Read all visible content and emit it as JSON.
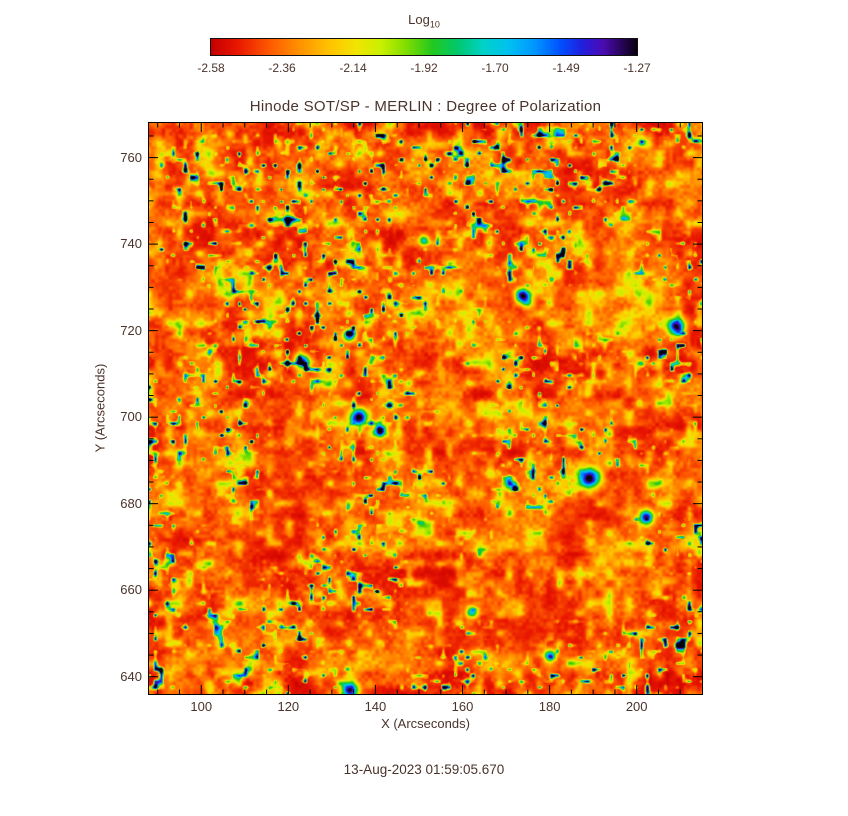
{
  "chart_data": {
    "type": "heatmap",
    "title": "Hinode SOT/SP - MERLIN : Degree of Polarization",
    "xlabel": "X (Arcseconds)",
    "ylabel": "Y (Arcseconds)",
    "timestamp": "13-Aug-2023 01:59:05.670",
    "xlim": [
      88,
      215
    ],
    "ylim": [
      636,
      768
    ],
    "x_ticks": [
      100,
      120,
      140,
      160,
      180,
      200
    ],
    "y_ticks": [
      640,
      660,
      680,
      700,
      720,
      740,
      760
    ],
    "minor_tick_step": 5,
    "grid": false,
    "legend": "none",
    "colorbar": {
      "label": "Log",
      "label_subscript": "10",
      "tick_labels": [
        "-2.58",
        "-2.36",
        "-2.14",
        "-1.92",
        "-1.70",
        "-1.49",
        "-1.27"
      ],
      "value_range": [
        -2.58,
        -1.27
      ],
      "orientation": "horizontal",
      "colormap_stops": [
        {
          "pos": 0.0,
          "color": "#c30000"
        },
        {
          "pos": 0.06,
          "color": "#e81500"
        },
        {
          "pos": 0.14,
          "color": "#ff5a00"
        },
        {
          "pos": 0.2,
          "color": "#ff8c00"
        },
        {
          "pos": 0.28,
          "color": "#ffc400"
        },
        {
          "pos": 0.34,
          "color": "#f2e400"
        },
        {
          "pos": 0.4,
          "color": "#c8f000"
        },
        {
          "pos": 0.46,
          "color": "#7ddc00"
        },
        {
          "pos": 0.52,
          "color": "#22c81e"
        },
        {
          "pos": 0.58,
          "color": "#00c86e"
        },
        {
          "pos": 0.64,
          "color": "#00d2c8"
        },
        {
          "pos": 0.7,
          "color": "#00c0f0"
        },
        {
          "pos": 0.76,
          "color": "#0096ff"
        },
        {
          "pos": 0.82,
          "color": "#0050ff"
        },
        {
          "pos": 0.87,
          "color": "#2020dd"
        },
        {
          "pos": 0.92,
          "color": "#4b0bb4"
        },
        {
          "pos": 0.96,
          "color": "#2a0560"
        },
        {
          "pos": 1.0,
          "color": "#0a0010"
        }
      ]
    },
    "field": {
      "description": "Mottled solar quiet-sun degree-of-polarization map: mostly log10 DoP between -2.6 and -2.1 (red/orange/yellow) with sparse high-polarization green/cyan/blue patches.",
      "texture": {
        "seed": 20230813,
        "base": 0.03,
        "amplitude": 0.4,
        "gamma": 1.8,
        "speckle": 0.22,
        "spike": 1.9,
        "row_variation": 0.05
      },
      "hotspots": [
        {
          "x": 123,
          "y": 713,
          "i": 0.85,
          "r": 5
        },
        {
          "x": 134,
          "y": 719,
          "i": 0.75,
          "r": 4
        },
        {
          "x": 136,
          "y": 700,
          "i": 0.9,
          "r": 6
        },
        {
          "x": 141,
          "y": 697,
          "i": 0.8,
          "r": 4
        },
        {
          "x": 174,
          "y": 728,
          "i": 0.8,
          "r": 5
        },
        {
          "x": 189,
          "y": 686,
          "i": 0.95,
          "r": 7
        },
        {
          "x": 202,
          "y": 677,
          "i": 0.85,
          "r": 5
        },
        {
          "x": 209,
          "y": 721,
          "i": 0.8,
          "r": 6
        },
        {
          "x": 134,
          "y": 637,
          "i": 0.9,
          "r": 6
        },
        {
          "x": 180,
          "y": 645,
          "i": 0.7,
          "r": 4
        },
        {
          "x": 162,
          "y": 655,
          "i": 0.6,
          "r": 4
        },
        {
          "x": 151,
          "y": 741,
          "i": 0.55,
          "r": 4
        }
      ]
    }
  }
}
